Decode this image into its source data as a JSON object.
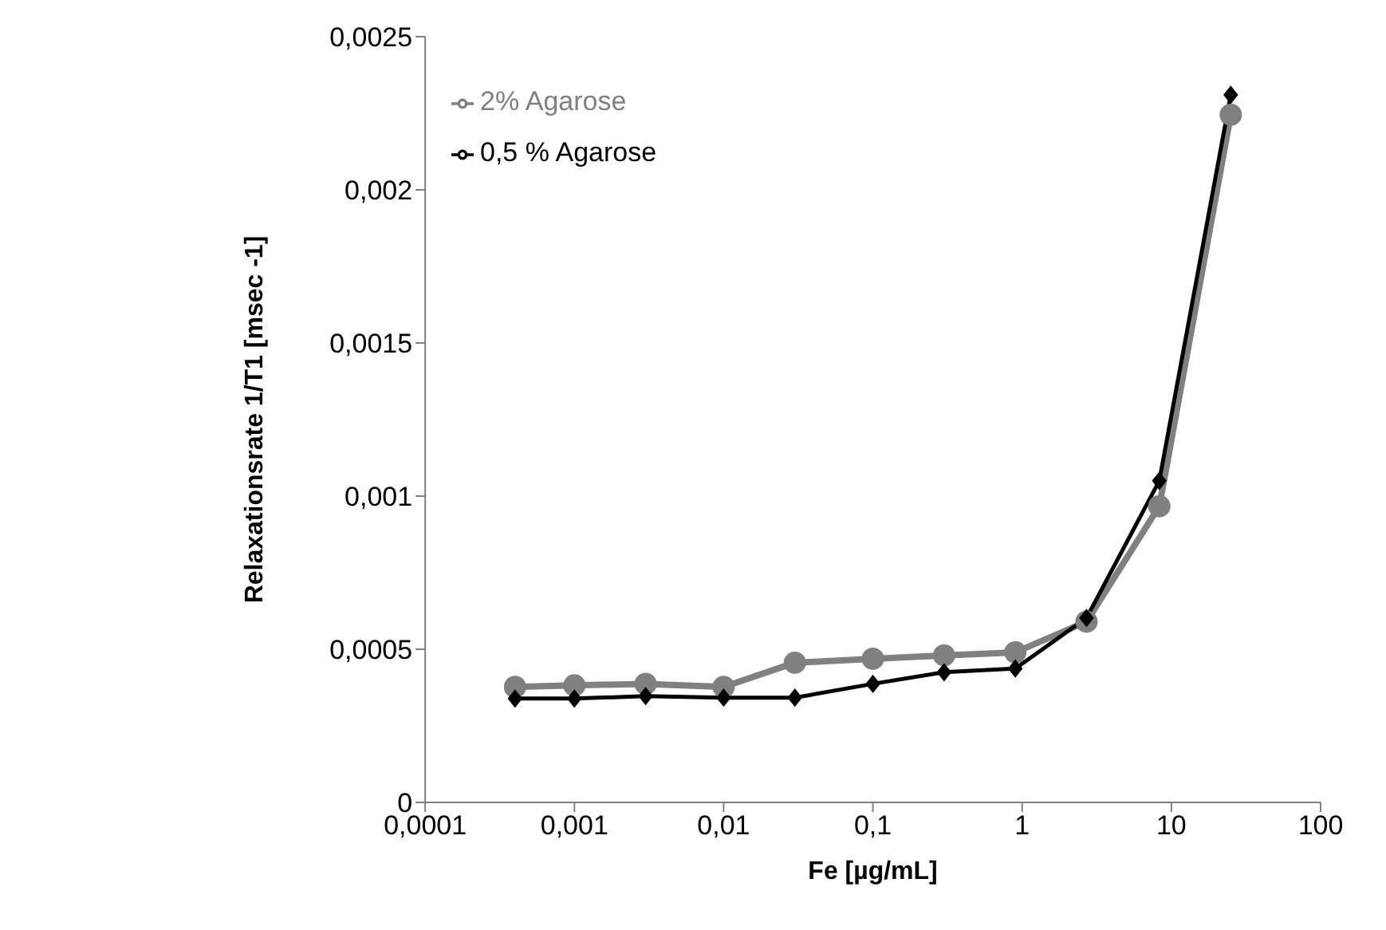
{
  "chart_data": {
    "type": "line",
    "xlabel": "Fe [µg/mL]",
    "ylabel": "Relaxationsrate 1/T1 [msec -1]",
    "x": [
      0.0004,
      0.001,
      0.003,
      0.01,
      0.03,
      0.1,
      0.3,
      0.9,
      2.7,
      8.3,
      25
    ],
    "series": [
      {
        "name": "2% Agarose",
        "color": "#808080",
        "marker": "circle",
        "values": [
          0.000377,
          0.000382,
          0.000387,
          0.000377,
          0.000456,
          0.000469,
          0.00048,
          0.00049,
          0.00059,
          0.000967,
          0.002245
        ]
      },
      {
        "name": "0,5 % Agarose",
        "color": "#000000",
        "marker": "diamond",
        "values": [
          0.000339,
          0.000339,
          0.000347,
          0.000342,
          0.000342,
          0.000387,
          0.000425,
          0.000437,
          0.000602,
          0.00105,
          0.00231
        ]
      }
    ],
    "log": "x",
    "xlim": [
      0.0001,
      100
    ],
    "xticks": [
      {
        "value": 0.0001,
        "label": "0,0001"
      },
      {
        "value": 0.001,
        "label": "0,001"
      },
      {
        "value": 0.01,
        "label": "0,01"
      },
      {
        "value": 0.1,
        "label": "0,1"
      },
      1,
      10,
      100
    ],
    "ylim": [
      0,
      0.0025
    ],
    "yticks": [
      0,
      {
        "value": 0.0005,
        "label": "0,0005"
      },
      {
        "value": 0.001,
        "label": "0,001"
      },
      {
        "value": 0.0015,
        "label": "0,0015"
      },
      {
        "value": 0.002,
        "label": "0,002"
      },
      {
        "value": 0.0025,
        "label": "0,0025"
      }
    ],
    "grid": false,
    "legend": "top left"
  }
}
